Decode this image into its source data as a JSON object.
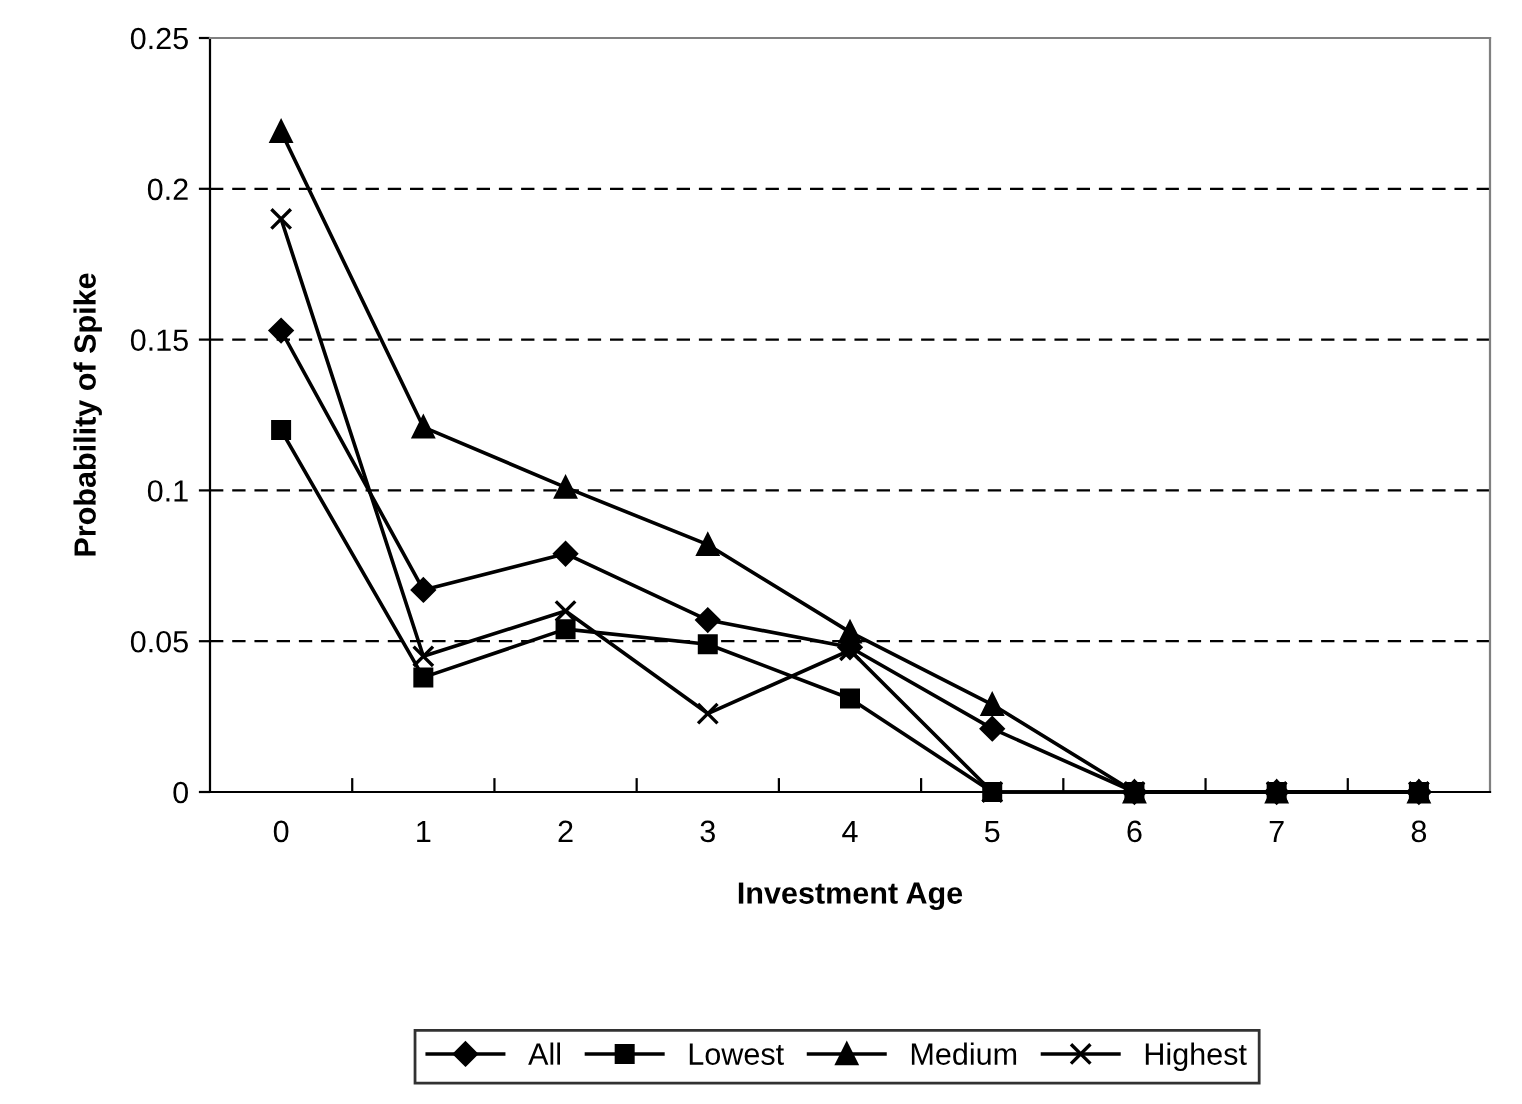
{
  "chart_data": {
    "type": "line",
    "xlabel": "Investment Age",
    "ylabel": "Probability of Spike",
    "categories": [
      "0",
      "1",
      "2",
      "3",
      "4",
      "5",
      "6",
      "7",
      "8"
    ],
    "series": [
      {
        "name": "All",
        "color": "#000000",
        "marker": "diamond",
        "values": [
          0.153,
          0.067,
          0.079,
          0.057,
          0.048,
          0.021,
          0,
          0,
          0
        ]
      },
      {
        "name": "Lowest",
        "color": "#000000",
        "marker": "square",
        "values": [
          0.12,
          0.038,
          0.054,
          0.049,
          0.031,
          0,
          0,
          0,
          0
        ]
      },
      {
        "name": "Medium",
        "color": "#000000",
        "marker": "triangle",
        "values": [
          0.219,
          0.121,
          0.101,
          0.082,
          0.053,
          0.029,
          0,
          0,
          0
        ]
      },
      {
        "name": "Highest",
        "color": "#000000",
        "marker": "cross",
        "values": [
          0.19,
          0.045,
          0.06,
          0.026,
          0.047,
          0,
          0,
          0,
          0
        ]
      }
    ],
    "ylim": [
      0,
      0.25
    ],
    "yticks": [
      {
        "value": 0,
        "label": "0"
      },
      0.05,
      0.1,
      0.15,
      0.2,
      0.25
    ],
    "grid": "y",
    "legend": "bottom",
    "line_style": "solid"
  }
}
